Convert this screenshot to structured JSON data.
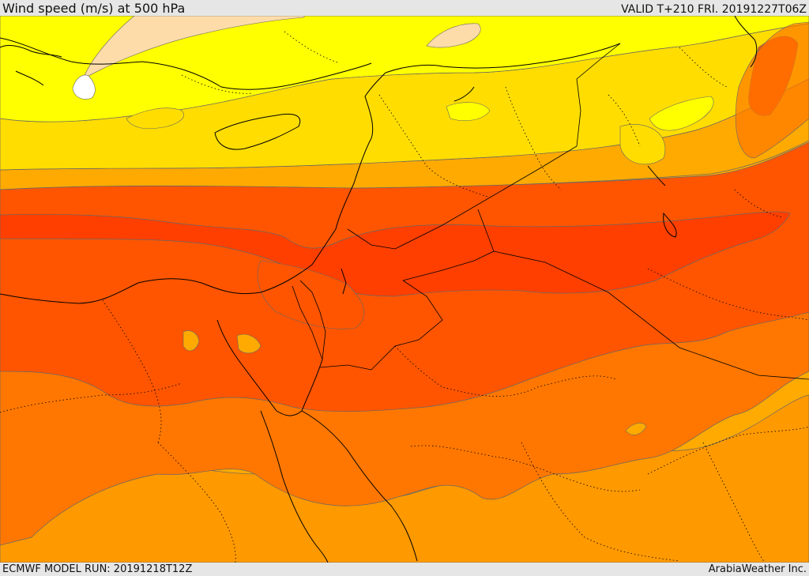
{
  "header": {
    "title": "Wind speed (m/s) at 500 hPa",
    "valid": "VALID T+210 FRI. 20191227T06Z"
  },
  "footer": {
    "model_run": "ECMWF MODEL RUN: 20191218T12Z",
    "credit": "ArabiaWeather Inc."
  },
  "colors": {
    "band_pale": "#fddcaa",
    "band_yellow": "#ffff00",
    "band_gold": "#ffdd00",
    "band_amber": "#ffaa00",
    "band_orange_light": "#ff9900",
    "band_orange": "#ff7700",
    "band_red_orange": "#ff5500",
    "band_red": "#ff3f00",
    "contour_line": "#555555",
    "coastline": "#000000"
  }
}
